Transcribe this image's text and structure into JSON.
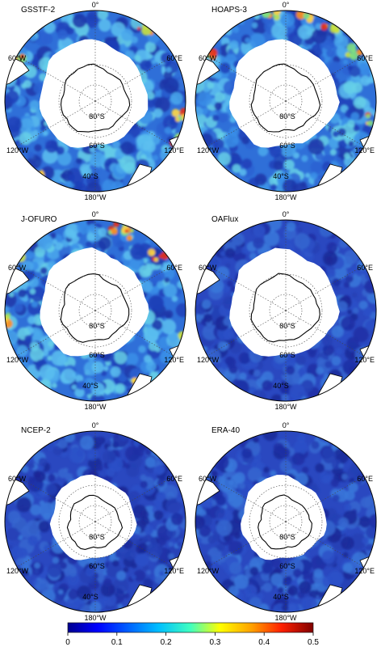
{
  "panels": [
    {
      "title": "GSSTF-2",
      "level": "high",
      "labels": {
        "top": "0°",
        "left": "60°W",
        "right": "60°E",
        "lowerLeft": "120°W",
        "lowerRight": "120°E",
        "bottom": "180°W",
        "lat80": "80°S",
        "lat60": "60°S",
        "lat40": "40°S"
      }
    },
    {
      "title": "HOAPS-3",
      "level": "high",
      "labels": {
        "top": "0°",
        "left": "60°W",
        "right": "60°E",
        "lowerLeft": "120°W",
        "lowerRight": "120°E",
        "bottom": "180°W",
        "lat80": "80°S",
        "lat60": "60°S",
        "lat40": "40°S"
      }
    },
    {
      "title": "J-OFURO",
      "level": "high",
      "labels": {
        "top": "0°",
        "left": "60°W",
        "right": "60°E",
        "lowerLeft": "120°W",
        "lowerRight": "120°E",
        "bottom": "180°W",
        "lat80": "80°S",
        "lat60": "60°S",
        "lat40": "40°S"
      }
    },
    {
      "title": "OAFlux",
      "level": "low",
      "labels": {
        "top": "0°",
        "left": "60°W",
        "right": "60°E",
        "lowerLeft": "120°W",
        "lowerRight": "120°E",
        "bottom": "180°W",
        "lat80": "80°S",
        "lat60": "60°S",
        "lat40": "40°S"
      }
    },
    {
      "title": "NCEP-2",
      "level": "low",
      "labels": {
        "top": "0°",
        "left": "60°W",
        "right": "60°E",
        "lowerLeft": "120°W",
        "lowerRight": "120°E",
        "bottom": "180°W",
        "lat80": "80°S",
        "lat60": "60°S",
        "lat40": "40°S"
      }
    },
    {
      "title": "ERA-40",
      "level": "low",
      "labels": {
        "top": "0°",
        "left": "60°W",
        "right": "60°E",
        "lowerLeft": "120°W",
        "lowerRight": "120°E",
        "bottom": "180°W",
        "lat80": "80°S",
        "lat60": "60°S",
        "lat40": "40°S"
      }
    }
  ],
  "colorbar": {
    "ticks": [
      "0",
      "0.1",
      "0.2",
      "0.3",
      "0.4",
      "0.5"
    ],
    "colors": [
      "#00008f",
      "#0000ff",
      "#0080ff",
      "#00ffff",
      "#80ff80",
      "#ffff00",
      "#ff8000",
      "#ff0000",
      "#800000"
    ]
  }
}
